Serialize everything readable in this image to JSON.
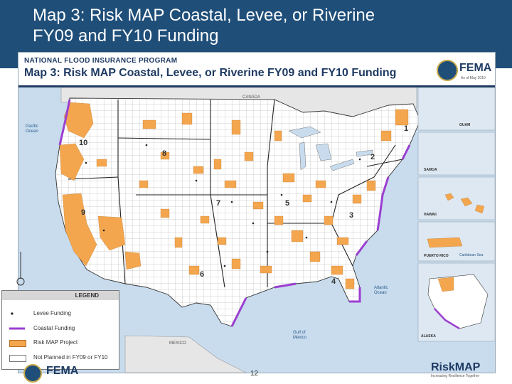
{
  "slide_title": {
    "line1": "Map 3: Risk MAP Coastal, Levee, or Riverine",
    "line2": "FY09 and FY10 Funding"
  },
  "map": {
    "program": "NATIONAL FLOOD INSURANCE PROGRAM",
    "title": "Map 3:  Risk MAP Coastal, Levee, or Riverine FY09 and FY10 Funding",
    "agency": "FEMA",
    "as_of": "As of May 2010",
    "labels": {
      "canada": "CANADA",
      "pacific": "Pacific\nOcean",
      "atlantic": "Atlantic\nOcean",
      "gulf": "Gulf of\nMexico",
      "mexico": "MEXICO",
      "caribbean": "Caribbean Sea"
    },
    "regions": [
      "1",
      "2",
      "3",
      "4",
      "5",
      "6",
      "7",
      "8",
      "9",
      "10"
    ],
    "inset_labels": {
      "puerto_rico": "PUERTO RICO",
      "alaska": "ALASKA",
      "hawaii": "HAWAII",
      "guam": "GUAM",
      "samoa": "SAMOA"
    },
    "colors": {
      "risk_map_project": "#f4a64f",
      "coastal_funding": "#9b3fd0",
      "levee_funding": "#222222",
      "not_planned": "#ffffff",
      "water": "#c8dcee",
      "background": "#eef3f8"
    }
  },
  "legend": {
    "title": "LEGEND",
    "items": [
      {
        "label": "Levee Funding",
        "symbol": "dot"
      },
      {
        "label": "Coastal Funding",
        "symbol": "line"
      },
      {
        "label": "Risk MAP Project",
        "symbol": "orange"
      },
      {
        "label": "Not Planned in FY09 or FY10",
        "symbol": "white"
      }
    ]
  },
  "footer": {
    "fema_text": "FEMA",
    "page_number": "12",
    "riskmap": "RiskMAP",
    "riskmap_tagline": "Increasing Resilience Together"
  }
}
